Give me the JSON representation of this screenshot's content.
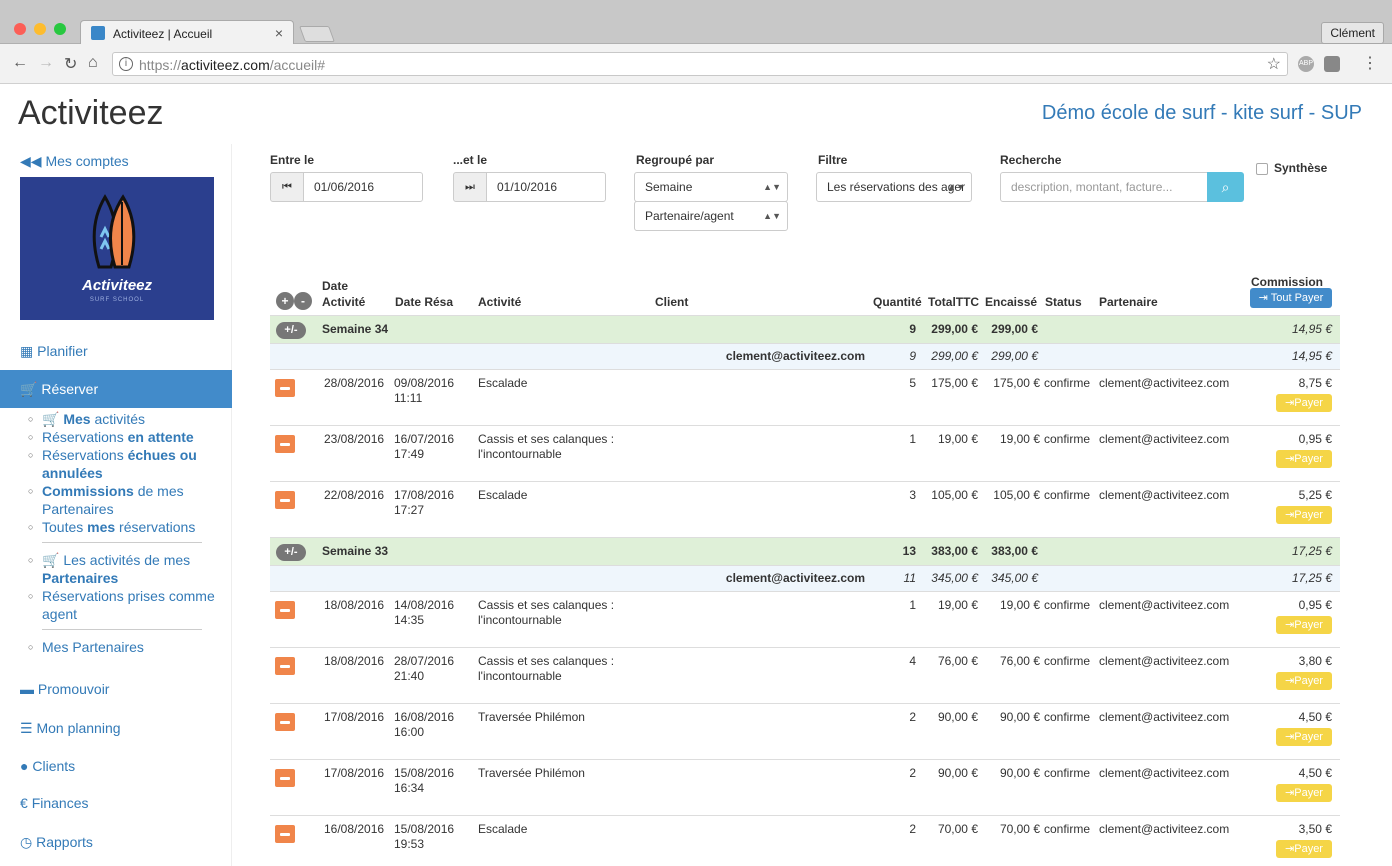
{
  "browser": {
    "tab_title": "Activiteez | Accueil",
    "tab_close": "×",
    "profile": "Clément",
    "url_scheme": "https://",
    "url_domain": "activiteez.com",
    "url_path": "/accueil#",
    "ext_abp": "ABP"
  },
  "header": {
    "brand": "Activiteez",
    "school": "Démo école de surf - kite surf - SUP"
  },
  "sidebar": {
    "back": "Mes comptes",
    "logo_text": "Activiteez",
    "logo_sub": "SURF SCHOOL",
    "planifier": "Planifier",
    "reserver": "Réserver",
    "sub": {
      "mes_activites_b": "Mes",
      "mes_activites": " activités",
      "attente_1": "Réservations ",
      "attente_b": "en attente",
      "echues_1": "Réservations ",
      "echues_b": "échues ou annulées",
      "commissions_b": "Commissions",
      "commissions_2": " de mes Partenaires",
      "toutes_1": "Toutes ",
      "toutes_b": "mes",
      "toutes_2": " réservations",
      "partenaires_1": " Les activités de mes ",
      "partenaires_b": "Partenaires",
      "agent": "Réservations prises comme agent",
      "mes_partenaires": "Mes Partenaires"
    },
    "promouvoir": "Promouvoir",
    "mon_planning": "Mon planning",
    "clients": "Clients",
    "finances": "Finances",
    "rapports": "Rapports"
  },
  "filters": {
    "entre_le": "Entre le",
    "date_from": "01/06/2016",
    "et_le": "...et le",
    "date_to": "01/10/2016",
    "regroupe_par": "Regroupé par",
    "group1": "Semaine",
    "group2": "Partenaire/agent",
    "filtre": "Filtre",
    "filtre_value": "Les réservations des ager",
    "recherche": "Recherche",
    "search_placeholder": "description, montant, facture...",
    "synthese": "Synthèse"
  },
  "table": {
    "headers": {
      "date_activite_1": "Date",
      "date_activite_2": "Activité",
      "date_resa": "Date Résa",
      "activite": "Activité",
      "client": "Client",
      "quantite": "Quantité",
      "total": "TotalTTC",
      "encaisse": "Encaissé",
      "status": "Status",
      "partenaire": "Partenaire",
      "commission": "Commission",
      "tout_payer": "Tout Payer"
    },
    "toggle_label": "+/-",
    "payer_label": "Payer",
    "groups": [
      {
        "label": "Semaine 34",
        "qty": "9",
        "total": "299,00 €",
        "encaisse": "299,00 €",
        "commission": "14,95 €",
        "sub": {
          "partner": "clement@activiteez.com",
          "qty": "9",
          "total": "299,00 €",
          "encaisse": "299,00 €",
          "commission": "14,95 €"
        },
        "rows": [
          {
            "date": "28/08/2016",
            "resa_date": "09/08/2016",
            "resa_time": "11:11",
            "act1": "Escalade",
            "act2": "",
            "qty": "5",
            "total": "175,00 €",
            "encaisse": "175,00 €",
            "status": "confirme",
            "partner": "clement@activiteez.com",
            "commission": "8,75 €"
          },
          {
            "date": "23/08/2016",
            "resa_date": "16/07/2016",
            "resa_time": "17:49",
            "act1": "Cassis et ses calanques :",
            "act2": "l'incontournable",
            "qty": "1",
            "total": "19,00 €",
            "encaisse": "19,00 €",
            "status": "confirme",
            "partner": "clement@activiteez.com",
            "commission": "0,95 €"
          },
          {
            "date": "22/08/2016",
            "resa_date": "17/08/2016",
            "resa_time": "17:27",
            "act1": "Escalade",
            "act2": "",
            "qty": "3",
            "total": "105,00 €",
            "encaisse": "105,00 €",
            "status": "confirme",
            "partner": "clement@activiteez.com",
            "commission": "5,25 €"
          }
        ]
      },
      {
        "label": "Semaine 33",
        "qty": "13",
        "total": "383,00 €",
        "encaisse": "383,00 €",
        "commission": "17,25 €",
        "sub": {
          "partner": "clement@activiteez.com",
          "qty": "11",
          "total": "345,00 €",
          "encaisse": "345,00 €",
          "commission": "17,25 €"
        },
        "rows": [
          {
            "date": "18/08/2016",
            "resa_date": "14/08/2016",
            "resa_time": "14:35",
            "act1": "Cassis et ses calanques :",
            "act2": "l'incontournable",
            "qty": "1",
            "total": "19,00 €",
            "encaisse": "19,00 €",
            "status": "confirme",
            "partner": "clement@activiteez.com",
            "commission": "0,95 €"
          },
          {
            "date": "18/08/2016",
            "resa_date": "28/07/2016",
            "resa_time": "21:40",
            "act1": "Cassis et ses calanques :",
            "act2": "l'incontournable",
            "qty": "4",
            "total": "76,00 €",
            "encaisse": "76,00 €",
            "status": "confirme",
            "partner": "clement@activiteez.com",
            "commission": "3,80 €"
          },
          {
            "date": "17/08/2016",
            "resa_date": "16/08/2016",
            "resa_time": "16:00",
            "act1": "Traversée Philémon",
            "act2": "",
            "qty": "2",
            "total": "90,00 €",
            "encaisse": "90,00 €",
            "status": "confirme",
            "partner": "clement@activiteez.com",
            "commission": "4,50 €"
          },
          {
            "date": "17/08/2016",
            "resa_date": "15/08/2016",
            "resa_time": "16:34",
            "act1": "Traversée Philémon",
            "act2": "",
            "qty": "2",
            "total": "90,00 €",
            "encaisse": "90,00 €",
            "status": "confirme",
            "partner": "clement@activiteez.com",
            "commission": "4,50 €"
          },
          {
            "date": "16/08/2016",
            "resa_date": "15/08/2016",
            "resa_time": "19:53",
            "act1": "Escalade",
            "act2": "",
            "qty": "2",
            "total": "70,00 €",
            "encaisse": "70,00 €",
            "status": "confirme",
            "partner": "clement@activiteez.com",
            "commission": "3,50 €"
          }
        ]
      }
    ]
  }
}
